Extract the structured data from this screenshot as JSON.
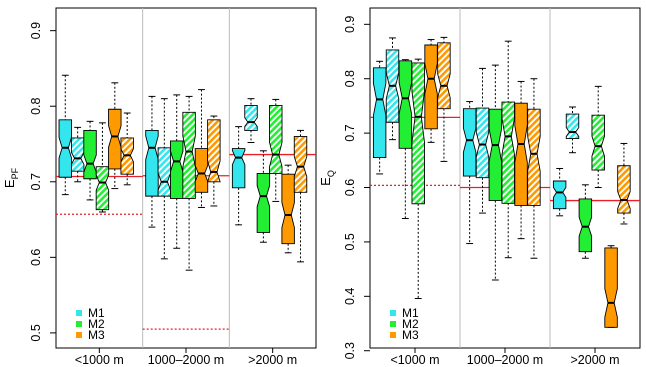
{
  "colors": {
    "M1": "#33e6ee",
    "M2": "#22ee33",
    "M3": "#ff9900",
    "solid_line": "#e8202a",
    "dotted_line": "#e8202a",
    "divider": "#bbbbbb"
  },
  "chart_data": [
    {
      "type": "boxplot",
      "panel": "left",
      "ylabel": "E",
      "ylabel_sub": "PF",
      "ylim": [
        0.48,
        0.93
      ],
      "yticks": [
        "0.5",
        "0.6",
        "0.7",
        "0.8",
        "0.9"
      ],
      "ytick_values": [
        0.5,
        0.6,
        0.7,
        0.8,
        0.9
      ],
      "groups": [
        "<1000 m",
        "1000–2000 m",
        ">2000 m"
      ],
      "legend": [
        "M1",
        "M2",
        "M3"
      ],
      "reference_lines": [
        {
          "group": 0,
          "solid": 0.707,
          "dotted": 0.657
        },
        {
          "group": 1,
          "solid": 0.708,
          "dotted": 0.505
        },
        {
          "group": 2,
          "solid": 0.736,
          "dotted": null
        }
      ],
      "boxes": [
        {
          "group": 0,
          "series": "M1",
          "hatched": false,
          "min": 0.683,
          "q1": 0.706,
          "median": 0.745,
          "q3": 0.782,
          "max": 0.841
        },
        {
          "group": 0,
          "series": "M1",
          "hatched": true,
          "min": 0.7,
          "q1": 0.714,
          "median": 0.731,
          "q3": 0.758,
          "max": 0.772
        },
        {
          "group": 0,
          "series": "M2",
          "hatched": false,
          "min": 0.676,
          "q1": 0.704,
          "median": 0.724,
          "q3": 0.768,
          "max": 0.78
        },
        {
          "group": 0,
          "series": "M2",
          "hatched": true,
          "min": 0.66,
          "q1": 0.663,
          "median": 0.699,
          "q3": 0.72,
          "max": 0.778
        },
        {
          "group": 0,
          "series": "M3",
          "hatched": false,
          "min": 0.691,
          "q1": 0.717,
          "median": 0.76,
          "q3": 0.796,
          "max": 0.831
        },
        {
          "group": 0,
          "series": "M3",
          "hatched": true,
          "min": 0.696,
          "q1": 0.71,
          "median": 0.735,
          "q3": 0.758,
          "max": 0.791
        },
        {
          "group": 1,
          "series": "M1",
          "hatched": false,
          "min": 0.64,
          "q1": 0.681,
          "median": 0.745,
          "q3": 0.768,
          "max": 0.813
        },
        {
          "group": 1,
          "series": "M1",
          "hatched": true,
          "min": 0.598,
          "q1": 0.681,
          "median": 0.7,
          "q3": 0.745,
          "max": 0.81
        },
        {
          "group": 1,
          "series": "M2",
          "hatched": false,
          "min": 0.612,
          "q1": 0.678,
          "median": 0.727,
          "q3": 0.754,
          "max": 0.815
        },
        {
          "group": 1,
          "series": "M2",
          "hatched": true,
          "min": 0.583,
          "q1": 0.678,
          "median": 0.74,
          "q3": 0.792,
          "max": 0.813
        },
        {
          "group": 1,
          "series": "M3",
          "hatched": false,
          "min": 0.666,
          "q1": 0.686,
          "median": 0.711,
          "q3": 0.744,
          "max": 0.822
        },
        {
          "group": 1,
          "series": "M3",
          "hatched": true,
          "min": 0.668,
          "q1": 0.7,
          "median": 0.713,
          "q3": 0.782,
          "max": 0.787
        },
        {
          "group": 2,
          "series": "M1",
          "hatched": false,
          "min": 0.643,
          "q1": 0.692,
          "median": 0.732,
          "q3": 0.744,
          "max": 0.773
        },
        {
          "group": 2,
          "series": "M1",
          "hatched": true,
          "min": 0.752,
          "q1": 0.768,
          "median": 0.779,
          "q3": 0.801,
          "max": 0.81
        },
        {
          "group": 2,
          "series": "M2",
          "hatched": false,
          "min": 0.62,
          "q1": 0.633,
          "median": 0.681,
          "q3": 0.711,
          "max": 0.741
        },
        {
          "group": 2,
          "series": "M2",
          "hatched": true,
          "min": 0.674,
          "q1": 0.711,
          "median": 0.736,
          "q3": 0.801,
          "max": 0.809
        },
        {
          "group": 2,
          "series": "M3",
          "hatched": false,
          "min": 0.606,
          "q1": 0.618,
          "median": 0.656,
          "q3": 0.71,
          "max": 0.722
        },
        {
          "group": 2,
          "series": "M3",
          "hatched": true,
          "min": 0.594,
          "q1": 0.686,
          "median": 0.72,
          "q3": 0.76,
          "max": 0.768
        }
      ]
    },
    {
      "type": "boxplot",
      "panel": "right",
      "ylabel": "E",
      "ylabel_sub": "Q",
      "ylim": [
        0.305,
        0.93
      ],
      "yticks": [
        "0.3",
        "0.4",
        "0.5",
        "0.6",
        "0.7",
        "0.8",
        "0.9"
      ],
      "ytick_values": [
        0.3,
        0.4,
        0.5,
        0.6,
        0.7,
        0.8,
        0.9
      ],
      "groups": [
        "<1000 m",
        "1000–2000 m",
        ">2000 m"
      ],
      "legend": [
        "M1",
        "M2",
        "M3"
      ],
      "reference_lines": [
        {
          "group": 0,
          "solid": 0.729,
          "dotted": 0.604
        },
        {
          "group": 1,
          "solid": 0.6,
          "dotted": null
        },
        {
          "group": 2,
          "solid": 0.576,
          "dotted": null
        }
      ],
      "boxes": [
        {
          "group": 0,
          "series": "M1",
          "hatched": false,
          "min": 0.625,
          "q1": 0.655,
          "median": 0.762,
          "q3": 0.82,
          "max": 0.832
        },
        {
          "group": 0,
          "series": "M1",
          "hatched": true,
          "min": 0.688,
          "q1": 0.72,
          "median": 0.787,
          "q3": 0.853,
          "max": 0.875
        },
        {
          "group": 0,
          "series": "M2",
          "hatched": false,
          "min": 0.543,
          "q1": 0.672,
          "median": 0.764,
          "q3": 0.833,
          "max": 0.835
        },
        {
          "group": 0,
          "series": "M2",
          "hatched": true,
          "min": 0.396,
          "q1": 0.57,
          "median": 0.73,
          "q3": 0.829,
          "max": 0.836
        },
        {
          "group": 0,
          "series": "M3",
          "hatched": false,
          "min": 0.683,
          "q1": 0.708,
          "median": 0.8,
          "q3": 0.862,
          "max": 0.872
        },
        {
          "group": 0,
          "series": "M3",
          "hatched": true,
          "min": 0.648,
          "q1": 0.745,
          "median": 0.787,
          "q3": 0.866,
          "max": 0.876
        },
        {
          "group": 1,
          "series": "M1",
          "hatched": false,
          "min": 0.497,
          "q1": 0.621,
          "median": 0.687,
          "q3": 0.745,
          "max": 0.758
        },
        {
          "group": 1,
          "series": "M1",
          "hatched": true,
          "min": 0.553,
          "q1": 0.618,
          "median": 0.679,
          "q3": 0.746,
          "max": 0.819
        },
        {
          "group": 1,
          "series": "M2",
          "hatched": false,
          "min": 0.43,
          "q1": 0.576,
          "median": 0.678,
          "q3": 0.744,
          "max": 0.825
        },
        {
          "group": 1,
          "series": "M2",
          "hatched": true,
          "min": 0.471,
          "q1": 0.571,
          "median": 0.694,
          "q3": 0.757,
          "max": 0.869
        },
        {
          "group": 1,
          "series": "M3",
          "hatched": false,
          "min": 0.506,
          "q1": 0.567,
          "median": 0.68,
          "q3": 0.755,
          "max": 0.795
        },
        {
          "group": 1,
          "series": "M3",
          "hatched": true,
          "min": 0.47,
          "q1": 0.567,
          "median": 0.662,
          "q3": 0.744,
          "max": 0.8
        },
        {
          "group": 2,
          "series": "M1",
          "hatched": false,
          "min": 0.548,
          "q1": 0.561,
          "median": 0.591,
          "q3": 0.612,
          "max": 0.635
        },
        {
          "group": 2,
          "series": "M1",
          "hatched": true,
          "min": 0.664,
          "q1": 0.69,
          "median": 0.702,
          "q3": 0.735,
          "max": 0.748
        },
        {
          "group": 2,
          "series": "M2",
          "hatched": false,
          "min": 0.47,
          "q1": 0.482,
          "median": 0.528,
          "q3": 0.579,
          "max": 0.605
        },
        {
          "group": 2,
          "series": "M2",
          "hatched": true,
          "min": 0.6,
          "q1": 0.632,
          "median": 0.676,
          "q3": 0.733,
          "max": 0.786
        },
        {
          "group": 2,
          "series": "M3",
          "hatched": false,
          "min": 0.343,
          "q1": 0.343,
          "median": 0.388,
          "q3": 0.489,
          "max": 0.493
        },
        {
          "group": 2,
          "series": "M3",
          "hatched": true,
          "min": 0.533,
          "q1": 0.553,
          "median": 0.577,
          "q3": 0.64,
          "max": 0.681
        }
      ]
    }
  ]
}
